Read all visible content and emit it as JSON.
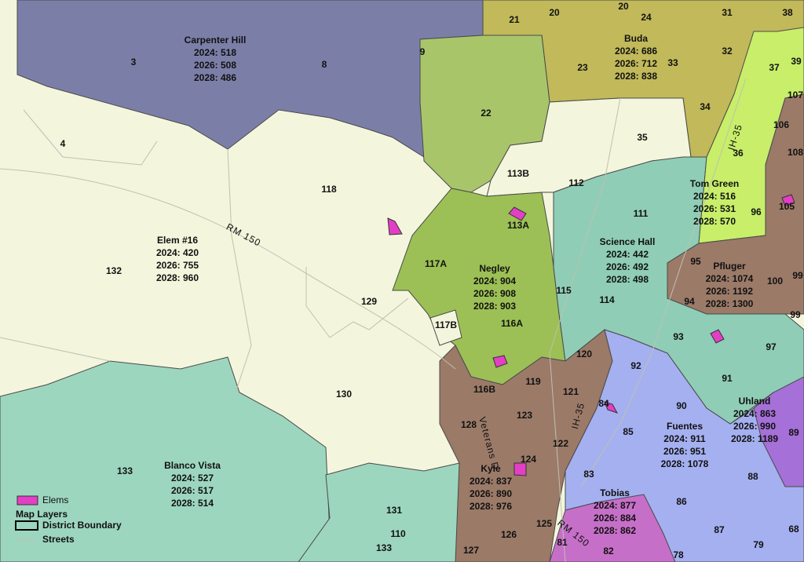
{
  "planning_units": [
    "3",
    "8",
    "9",
    "21",
    "20",
    "20",
    "24",
    "31",
    "38",
    "23",
    "33",
    "32",
    "37",
    "39",
    "107",
    "34",
    "106",
    "108",
    "22",
    "35",
    "36",
    "4",
    "118",
    "113B",
    "112",
    "111",
    "96",
    "105",
    "117A",
    "113A",
    "132",
    "95",
    "100",
    "99",
    "115",
    "114",
    "94",
    "99",
    "129",
    "117B",
    "116A",
    "93",
    "97",
    "120",
    "92",
    "91",
    "116B",
    "119",
    "121",
    "130",
    "90",
    "84",
    "123",
    "128",
    "85",
    "89",
    "122",
    "124",
    "133",
    "83",
    "88",
    "86",
    "131",
    "110",
    "125",
    "126",
    "87",
    "68",
    "81",
    "133",
    "127",
    "79",
    "82",
    "78"
  ],
  "schools": [
    {
      "name": "Carpenter Hill",
      "lines": [
        "2024: 518",
        "2026: 508",
        "2028: 486"
      ]
    },
    {
      "name": "Buda",
      "lines": [
        "2024: 686",
        "2026: 712",
        "2028: 838"
      ]
    },
    {
      "name": "Elem #16",
      "lines": [
        "2024: 420",
        "2026: 755",
        "2028: 960"
      ]
    },
    {
      "name": "Negley",
      "lines": [
        "2024: 904",
        "2026: 908",
        "2028: 903"
      ]
    },
    {
      "name": "Science Hall",
      "lines": [
        "2024: 442",
        "2026: 492",
        "2028: 498"
      ]
    },
    {
      "name": "Tom Green",
      "lines": [
        "2024: 516",
        "2026: 531",
        "2028: 570"
      ]
    },
    {
      "name": "Pfluger",
      "lines": [
        "2024: 1074",
        "2026: 1192",
        "2028: 1300"
      ]
    },
    {
      "name": "Uhland",
      "lines": [
        "2024: 863",
        "2026: 990",
        "2028: 1189"
      ]
    },
    {
      "name": "Fuentes",
      "lines": [
        "2024: 911",
        "2026: 951",
        "2028: 1078"
      ]
    },
    {
      "name": "Blanco Vista",
      "lines": [
        "2024: 527",
        "2026: 517",
        "2028: 514"
      ]
    },
    {
      "name": "Kyle",
      "lines": [
        "2024: 837",
        "2026: 890",
        "2028: 976"
      ]
    },
    {
      "name": "Tobias",
      "lines": [
        "2024: 877",
        "2026: 884",
        "2028: 862"
      ]
    }
  ],
  "roads": [
    "RM 150",
    "IH-35",
    "IH-35",
    "Veterans D",
    "RM 150"
  ],
  "legend": {
    "item": "Elems",
    "section": "Map Layers",
    "layers": [
      "District Boundary",
      "Streets"
    ]
  }
}
